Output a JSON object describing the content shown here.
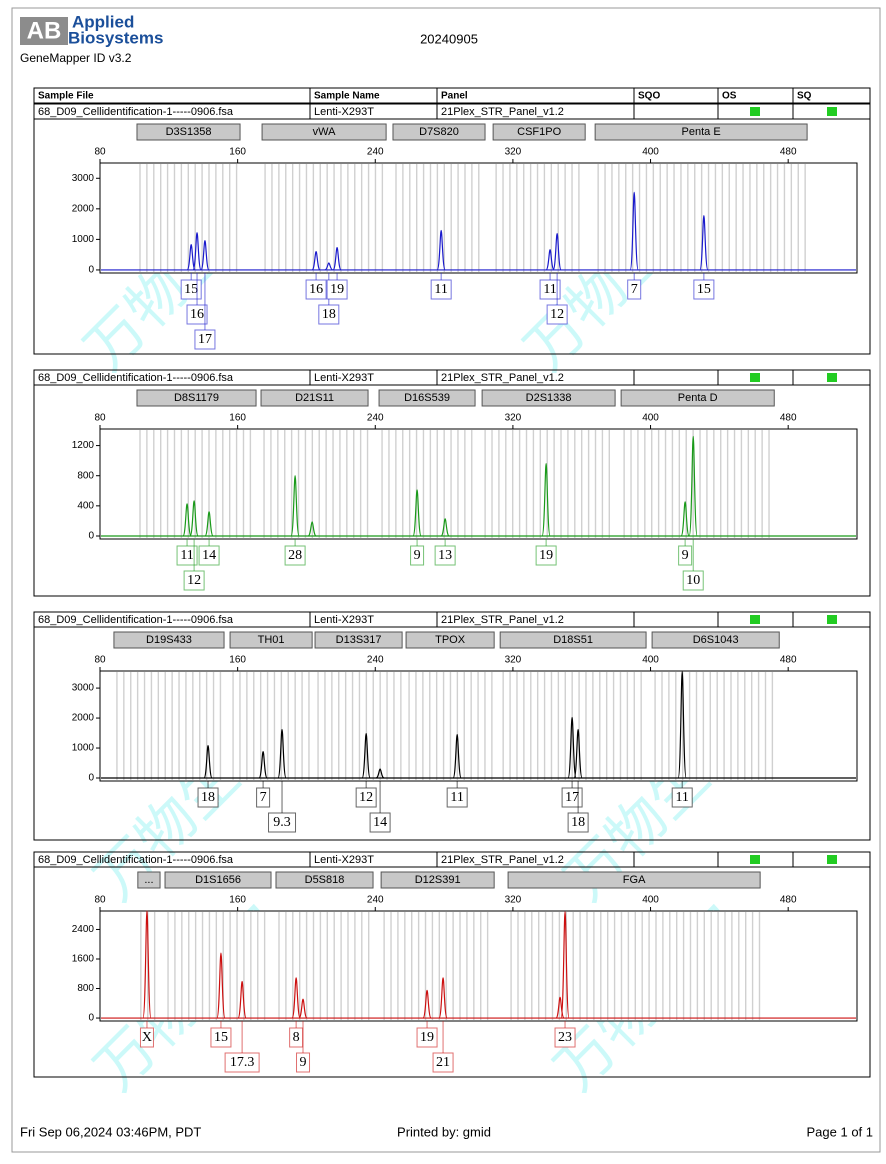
{
  "header": {
    "logo": "AB",
    "brand_line1": "Applied",
    "brand_line2": "Biosystems",
    "software": "GeneMapper ID v3.2",
    "date": "20240905"
  },
  "columns": [
    "Sample File",
    "Sample Name",
    "Panel",
    "SQO",
    "OS",
    "SQ"
  ],
  "watermark": "万物生物",
  "panels": [
    {
      "sample_file": "68_D09_Cellidentification-1-----0906.fsa",
      "sample_name": "Lenti-X293T",
      "panel": "21Plex_STR_Panel_v1.2",
      "color": "#1a1acc",
      "loci": [
        {
          "name": "D3S1358",
          "start": 101.5,
          "end": 161.4
        },
        {
          "name": "vWA",
          "start": 174.2,
          "end": 246.3
        },
        {
          "name": "D7S820",
          "start": 250.3,
          "end": 303.8
        },
        {
          "name": "CSF1PO",
          "start": 308.5,
          "end": 362
        },
        {
          "name": "Penta E",
          "start": 367.8,
          "end": 491
        }
      ],
      "xlim": [
        80,
        520
      ],
      "xticks": [
        80,
        160,
        240,
        320,
        400,
        480
      ],
      "ylim": [
        -100,
        3500
      ],
      "yticks": [
        0,
        1000,
        2000,
        3000
      ],
      "peaks": [
        {
          "x": 133,
          "height": 830,
          "label": "15"
        },
        {
          "x": 136.4,
          "height": 1220,
          "label": "16"
        },
        {
          "x": 141,
          "height": 960,
          "label": "17"
        },
        {
          "x": 205.6,
          "height": 600,
          "label": "16"
        },
        {
          "x": 213,
          "height": 230,
          "label": "18"
        },
        {
          "x": 217.8,
          "height": 730,
          "label": "19"
        },
        {
          "x": 278.3,
          "height": 1290,
          "label": "11"
        },
        {
          "x": 341.6,
          "height": 660,
          "label": "11"
        },
        {
          "x": 345.7,
          "height": 1190,
          "label": "12"
        },
        {
          "x": 390.5,
          "height": 2540,
          "label": "7"
        },
        {
          "x": 431,
          "height": 1780,
          "label": "15"
        }
      ]
    },
    {
      "sample_file": "68_D09_Cellidentification-1-----0906.fsa",
      "sample_name": "Lenti-X293T",
      "panel": "21Plex_STR_Panel_v1.2",
      "color": "#1a9a1a",
      "loci": [
        {
          "name": "D8S1179",
          "start": 101.5,
          "end": 170.7
        },
        {
          "name": "D21S11",
          "start": 173.6,
          "end": 235.8
        },
        {
          "name": "D16S539",
          "start": 242.2,
          "end": 298
        },
        {
          "name": "D2S1338",
          "start": 302.1,
          "end": 379.4
        },
        {
          "name": "Penta D",
          "start": 382.9,
          "end": 471.9
        }
      ],
      "xlim": [
        80,
        520
      ],
      "xticks": [
        80,
        160,
        240,
        320,
        400,
        480
      ],
      "ylim": [
        -40,
        1420
      ],
      "yticks": [
        0,
        400,
        800,
        1200
      ],
      "peaks": [
        {
          "x": 130.6,
          "height": 427,
          "label": "11"
        },
        {
          "x": 134.7,
          "height": 467,
          "label": "12"
        },
        {
          "x": 143.4,
          "height": 320,
          "label": "14"
        },
        {
          "x": 193.4,
          "height": 800,
          "label": "28"
        },
        {
          "x": 203.3,
          "height": 187
        },
        {
          "x": 264.3,
          "height": 613,
          "label": "9"
        },
        {
          "x": 280.6,
          "height": 227,
          "label": "13"
        },
        {
          "x": 339.3,
          "height": 960,
          "label": "19"
        },
        {
          "x": 420.1,
          "height": 453,
          "label": "9"
        },
        {
          "x": 424.8,
          "height": 1320,
          "label": "10"
        }
      ]
    },
    {
      "sample_file": "68_D09_Cellidentification-1-----0906.fsa",
      "sample_name": "Lenti-X293T",
      "panel": "21Plex_STR_Panel_v1.2",
      "color": "#000000",
      "loci": [
        {
          "name": "D19S433",
          "start": 88.1,
          "end": 152.1
        },
        {
          "name": "TH01",
          "start": 155.6,
          "end": 203.3
        },
        {
          "name": "D13S317",
          "start": 205,
          "end": 255.6
        },
        {
          "name": "TPOX",
          "start": 257.9,
          "end": 309.1
        },
        {
          "name": "D18S51",
          "start": 312.6,
          "end": 397.4
        },
        {
          "name": "D6S1043",
          "start": 400.9,
          "end": 474.8
        }
      ],
      "xlim": [
        80,
        520
      ],
      "xticks": [
        80,
        160,
        240,
        320,
        400,
        480
      ],
      "ylim": [
        -100,
        3570
      ],
      "yticks": [
        0,
        1000,
        2000,
        3000
      ],
      "peaks": [
        {
          "x": 142.8,
          "height": 1080,
          "label": "18"
        },
        {
          "x": 174.8,
          "height": 880,
          "label": "7"
        },
        {
          "x": 185.8,
          "height": 1620,
          "label": "9.3"
        },
        {
          "x": 234.7,
          "height": 1480,
          "label": "12"
        },
        {
          "x": 242.8,
          "height": 300,
          "label": "14"
        },
        {
          "x": 287.6,
          "height": 1450,
          "label": "11"
        },
        {
          "x": 354.4,
          "height": 2020,
          "label": "17"
        },
        {
          "x": 357.9,
          "height": 1620,
          "label": "18"
        },
        {
          "x": 418.4,
          "height": 3550,
          "label": "11"
        }
      ]
    },
    {
      "sample_file": "68_D09_Cellidentification-1-----0906.fsa",
      "sample_name": "Lenti-X293T",
      "panel": "21Plex_STR_Panel_v1.2",
      "color": "#cc1010",
      "loci": [
        {
          "name": "...",
          "start": 102,
          "end": 114.9
        },
        {
          "name": "D1S1656",
          "start": 117.8,
          "end": 179.4
        },
        {
          "name": "D5S818",
          "start": 182.3,
          "end": 238.7
        },
        {
          "name": "D12S391",
          "start": 243.4,
          "end": 309.1
        },
        {
          "name": "FGA",
          "start": 317.2,
          "end": 463.7
        }
      ],
      "xlim": [
        80,
        520
      ],
      "xticks": [
        80,
        160,
        240,
        320,
        400,
        480
      ],
      "ylim": [
        -80,
        2900
      ],
      "yticks": [
        0,
        800,
        1600,
        2400
      ],
      "peaks": [
        {
          "x": 107.3,
          "height": 2900,
          "label": "X"
        },
        {
          "x": 150.3,
          "height": 1760,
          "label": "15"
        },
        {
          "x": 162.6,
          "height": 990,
          "label": "17.3"
        },
        {
          "x": 194,
          "height": 1090,
          "label": "8"
        },
        {
          "x": 198,
          "height": 510,
          "label": "9"
        },
        {
          "x": 270.1,
          "height": 750,
          "label": "19"
        },
        {
          "x": 279.4,
          "height": 1090,
          "label": "21"
        },
        {
          "x": 347.4,
          "height": 560
        },
        {
          "x": 350.3,
          "height": 2880,
          "label": "23"
        }
      ]
    }
  ],
  "footer": {
    "printed_at": "Fri Sep 06,2024 03:46PM, PDT",
    "printed_by": "Printed by: gmid",
    "page": "Page 1 of 1"
  }
}
